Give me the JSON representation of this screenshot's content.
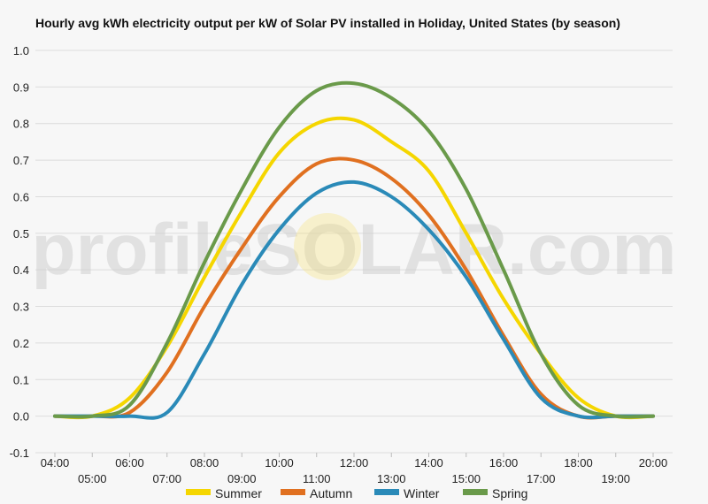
{
  "chart_data": {
    "type": "line",
    "title": "Hourly avg kWh electricity output per kW of Solar PV installed in Holiday, United States (by season)",
    "watermark": "profileSOLAR.com",
    "xlabel": "",
    "ylabel": "",
    "ylim": [
      -0.1,
      1.0
    ],
    "y_ticks": [
      -0.1,
      0.0,
      0.1,
      0.2,
      0.3,
      0.4,
      0.5,
      0.6,
      0.7,
      0.8,
      0.9,
      1.0
    ],
    "x_ticks": [
      "04:00",
      "05:00",
      "06:00",
      "07:00",
      "08:00",
      "09:00",
      "10:00",
      "11:00",
      "12:00",
      "13:00",
      "14:00",
      "15:00",
      "16:00",
      "17:00",
      "18:00",
      "19:00",
      "20:00"
    ],
    "grid": true,
    "legend_position": "bottom",
    "series": [
      {
        "name": "Summer",
        "color": "#f5d600",
        "values": [
          0.0,
          0.0,
          0.05,
          0.19,
          0.38,
          0.56,
          0.72,
          0.8,
          0.81,
          0.75,
          0.67,
          0.5,
          0.32,
          0.17,
          0.05,
          0.0,
          0.0
        ]
      },
      {
        "name": "Autumn",
        "color": "#e07020",
        "values": [
          0.0,
          0.0,
          0.01,
          0.12,
          0.3,
          0.46,
          0.6,
          0.69,
          0.7,
          0.65,
          0.55,
          0.4,
          0.22,
          0.06,
          0.0,
          0.0,
          0.0
        ]
      },
      {
        "name": "Winter",
        "color": "#2a8ab8",
        "values": [
          0.0,
          0.0,
          0.0,
          0.01,
          0.17,
          0.36,
          0.51,
          0.61,
          0.64,
          0.6,
          0.51,
          0.38,
          0.21,
          0.05,
          0.0,
          0.0,
          0.0
        ]
      },
      {
        "name": "Spring",
        "color": "#6a9a4a",
        "values": [
          0.0,
          0.0,
          0.03,
          0.2,
          0.42,
          0.62,
          0.79,
          0.89,
          0.91,
          0.87,
          0.78,
          0.62,
          0.4,
          0.17,
          0.03,
          0.0,
          0.0
        ]
      }
    ]
  }
}
